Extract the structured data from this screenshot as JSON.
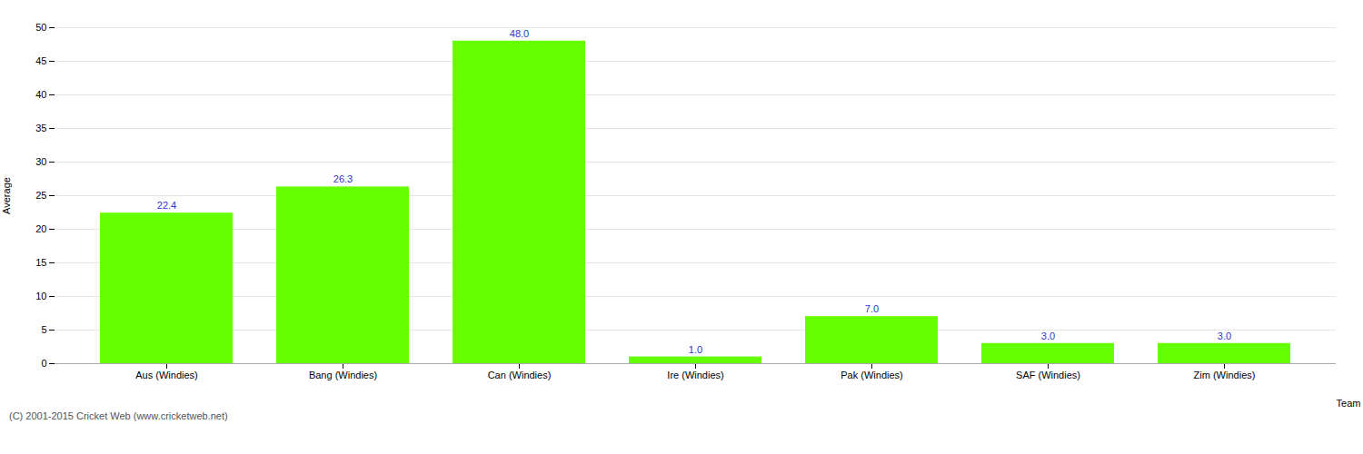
{
  "chart_data": {
    "type": "bar",
    "categories": [
      "Aus (Windies)",
      "Bang (Windies)",
      "Can (Windies)",
      "Ire (Windies)",
      "Pak (Windies)",
      "SAF (Windies)",
      "Zim (Windies)"
    ],
    "values": [
      22.4,
      26.3,
      48.0,
      1.0,
      7.0,
      3.0,
      3.0
    ],
    "value_labels": [
      "22.4",
      "26.3",
      "48.0",
      "1.0",
      "7.0",
      "3.0",
      "3.0"
    ],
    "data_labels": true,
    "color": "#66ff00",
    "xlabel": "Team",
    "ylabel": "Average",
    "ylim": [
      0,
      50
    ],
    "yticks": [
      0,
      5,
      10,
      15,
      20,
      25,
      30,
      35,
      40,
      45,
      50
    ],
    "grid": true,
    "annotations": [
      "(C) 2001-2015 Cricket Web (www.cricketweb.net)"
    ]
  }
}
